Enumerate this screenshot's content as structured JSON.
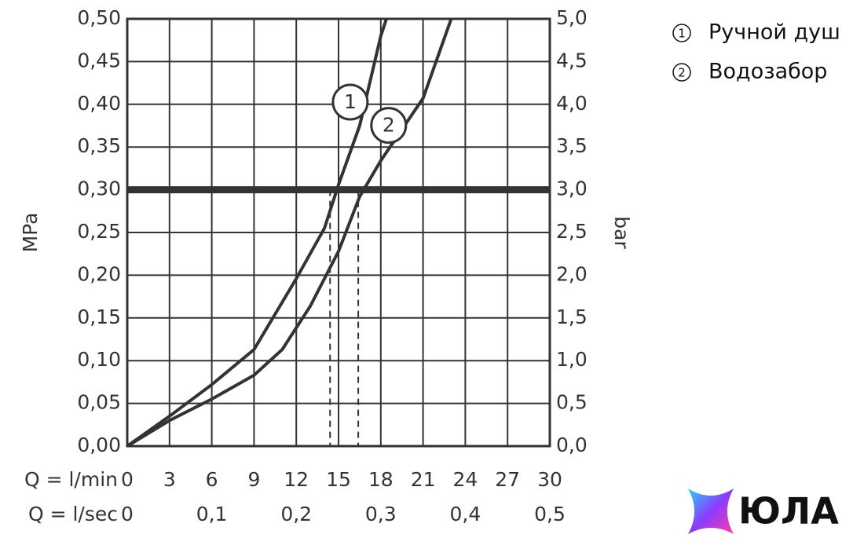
{
  "chart_data": {
    "type": "line",
    "xlabel": "Q = l/min",
    "x2label": "Q = l/sec",
    "ylabel": "MPa",
    "y2label": "bar",
    "xlim": [
      0,
      30
    ],
    "xticks": [
      0,
      3,
      6,
      9,
      12,
      15,
      18,
      21,
      24,
      27,
      30
    ],
    "x2lim": [
      0,
      0.5
    ],
    "x2ticks": [
      0,
      {
        "value": 0.1,
        "label": "0,1"
      },
      {
        "value": 0.2,
        "label": "0,2"
      },
      {
        "value": 0.3,
        "label": "0,3"
      },
      {
        "value": 0.4,
        "label": "0,4"
      },
      {
        "value": 0.5,
        "label": "0,5"
      }
    ],
    "ylim": [
      0,
      0.5
    ],
    "yticks": [
      {
        "value": 0,
        "label": "0,00"
      },
      {
        "value": 0.05,
        "label": "0,05"
      },
      {
        "value": 0.1,
        "label": "0,10"
      },
      {
        "value": 0.15,
        "label": "0,15"
      },
      {
        "value": 0.2,
        "label": "0,20"
      },
      {
        "value": 0.25,
        "label": "0,25"
      },
      {
        "value": 0.3,
        "label": "0,30"
      },
      {
        "value": 0.35,
        "label": "0,35"
      },
      {
        "value": 0.4,
        "label": "0,40"
      },
      {
        "value": 0.45,
        "label": "0,45"
      },
      {
        "value": 0.5,
        "label": "0,50"
      }
    ],
    "y2lim": [
      0,
      5
    ],
    "y2ticks": [
      {
        "value": 0,
        "label": "0,0"
      },
      {
        "value": 0.5,
        "label": "0,5"
      },
      {
        "value": 1,
        "label": "1,0"
      },
      {
        "value": 1.5,
        "label": "1,5"
      },
      {
        "value": 2,
        "label": "2,0"
      },
      {
        "value": 2.5,
        "label": "2,5"
      },
      {
        "value": 3,
        "label": "3,0"
      },
      {
        "value": 3.5,
        "label": "3,5"
      },
      {
        "value": 4,
        "label": "4,0"
      },
      {
        "value": 4.5,
        "label": "4,5"
      },
      {
        "value": 5,
        "label": "5,0"
      }
    ],
    "grid": true,
    "legend": "top-right",
    "reference_y": 0.3,
    "reference_x": [
      14.4,
      16.4
    ],
    "series": [
      {
        "name": "Ручной душ",
        "label": "1",
        "color": "#333333",
        "x": [
          0,
          3,
          6,
          9,
          12,
          14,
          15,
          16.5,
          18,
          18.4
        ],
        "values": [
          0,
          0.035,
          0.072,
          0.113,
          0.196,
          0.255,
          0.306,
          0.375,
          0.48,
          0.5
        ]
      },
      {
        "name": "Водозабор",
        "label": "2",
        "color": "#333333",
        "x": [
          0,
          3,
          6,
          9,
          11,
          13,
          15,
          16.5,
          18,
          21,
          23
        ],
        "values": [
          0,
          0.03,
          0.055,
          0.083,
          0.113,
          0.164,
          0.228,
          0.292,
          0.334,
          0.407,
          0.5
        ]
      }
    ],
    "watermark": "ЮЛА"
  }
}
